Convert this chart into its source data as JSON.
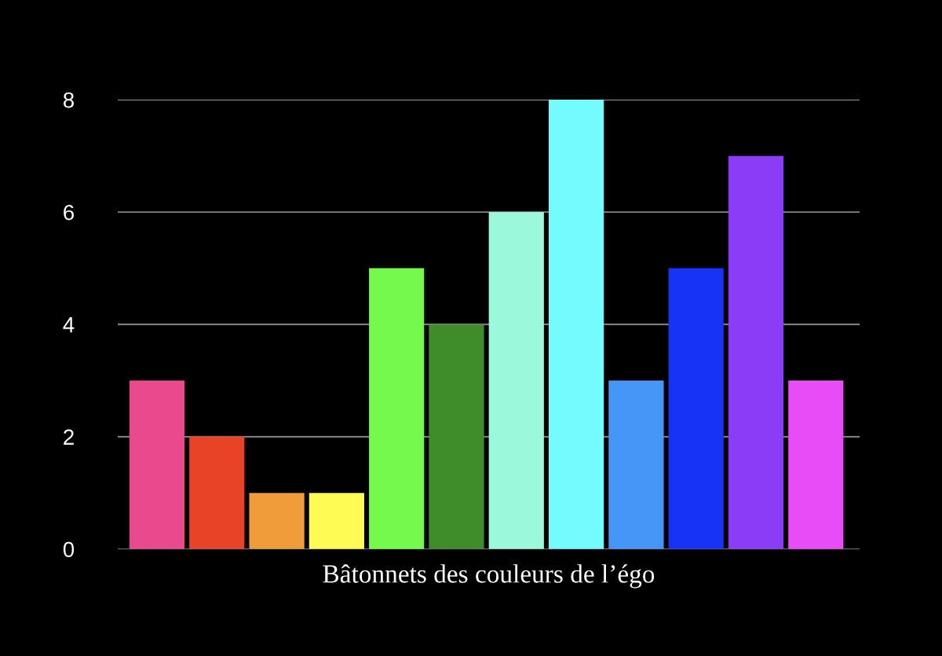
{
  "chart_data": {
    "type": "bar",
    "xlabel": "Bâtonnets des couleurs de l’égo",
    "categories": [
      null,
      null,
      null,
      null,
      null,
      null,
      null,
      null,
      null,
      null,
      null,
      null
    ],
    "values": [
      3,
      2,
      1,
      1,
      5,
      4,
      6,
      8,
      3,
      5,
      7,
      3
    ],
    "colors": [
      "#ea4a8d",
      "#e84327",
      "#f09c3a",
      "#fefb54",
      "#75f94d",
      "#3f8c2b",
      "#9cf8db",
      "#73fbfd",
      "#4596f7",
      "#1733f5",
      "#8b3cf6",
      "#e84cf6"
    ],
    "ylim": [
      0,
      8
    ],
    "yticks": [
      0,
      2,
      4,
      6,
      8
    ],
    "grid": "y",
    "tick_labels": "y"
  }
}
